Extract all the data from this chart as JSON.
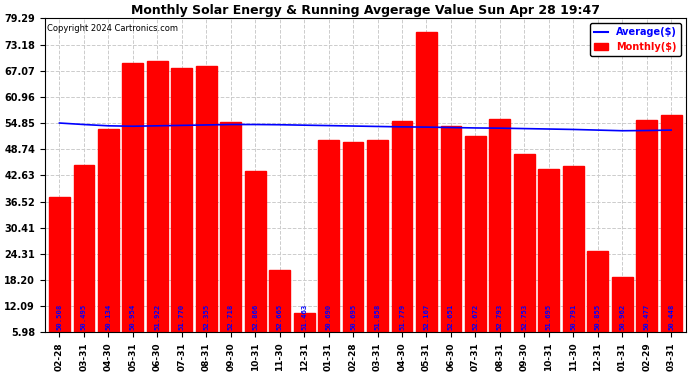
{
  "title": "Monthly Solar Energy & Running Avgerage Value Sun Apr 28 19:47",
  "copyright": "Copyright 2024 Cartronics.com",
  "legend_avg": "Average($)",
  "legend_monthly": "Monthly($)",
  "background_color": "#ffffff",
  "bar_color": "#ff0000",
  "bar_label_color": "#0000ff",
  "avg_line_color": "#0000ff",
  "grid_color": "#cccccc",
  "ylim_min": 5.98,
  "ylim_max": 79.29,
  "yticks": [
    5.98,
    12.09,
    18.2,
    24.31,
    30.41,
    36.52,
    42.63,
    48.74,
    54.85,
    60.96,
    67.07,
    73.18,
    79.29
  ],
  "categories": [
    "02-28",
    "03-31",
    "04-30",
    "05-31",
    "06-30",
    "07-31",
    "08-31",
    "09-30",
    "10-31",
    "11-30",
    "12-31",
    "01-31",
    "02-28",
    "03-31",
    "04-30",
    "05-31",
    "06-30",
    "07-31",
    "08-31",
    "09-30",
    "10-31",
    "11-30",
    "12-31",
    "01-31",
    "02-29",
    "03-31"
  ],
  "values": [
    37.5,
    44.95,
    53.34,
    68.94,
    69.22,
    67.78,
    68.16,
    55.18,
    43.68,
    20.65,
    10.39,
    50.9,
    50.48,
    50.95,
    55.38,
    76.2,
    54.19,
    51.79,
    55.79,
    47.61,
    44.21,
    44.92,
    25.03,
    18.91,
    55.55,
    56.65
  ],
  "bar_labels": [
    "50.508",
    "50.495",
    "50.134",
    "50.954",
    "51.922",
    "51.770",
    "52.355",
    "52.718",
    "52.866",
    "52.665",
    "51.463",
    "50.690",
    "50.695",
    "51.858",
    "51.779",
    "52.167",
    "52.651",
    "52.672",
    "52.793",
    "52.753",
    "51.695",
    "50.791",
    "50.855",
    "50.962",
    "50.477",
    "50.448"
  ],
  "avg_values": [
    54.85,
    54.5,
    54.2,
    54.1,
    54.2,
    54.3,
    54.4,
    54.5,
    54.5,
    54.45,
    54.35,
    54.25,
    54.15,
    54.05,
    53.95,
    53.9,
    53.8,
    53.7,
    53.65,
    53.55,
    53.45,
    53.35,
    53.2,
    53.05,
    53.1,
    53.2
  ]
}
